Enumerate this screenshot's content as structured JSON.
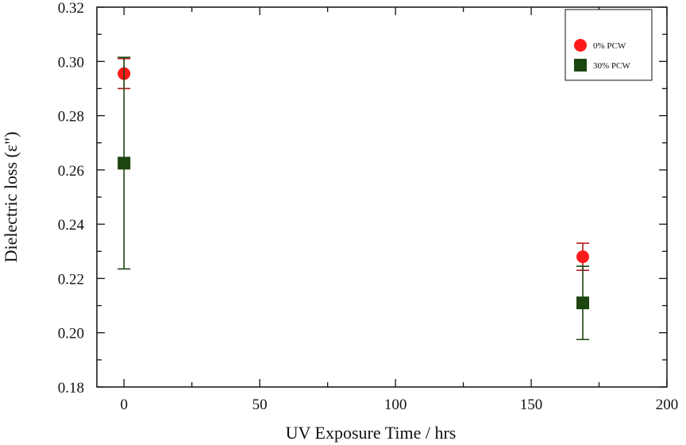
{
  "chart_data": {
    "type": "scatter",
    "title": "",
    "xlabel": "UV Exposure Time / hrs",
    "ylabel": "Dielectric loss (ε\")",
    "xlim": [
      -10,
      200
    ],
    "ylim": [
      0.18,
      0.32
    ],
    "xticks": [
      0,
      50,
      100,
      150,
      200
    ],
    "xtick_labels": [
      "0",
      "50",
      "100",
      "150",
      "200"
    ],
    "yticks": [
      0.18,
      0.2,
      0.22,
      0.24,
      0.26,
      0.28,
      0.3,
      0.32
    ],
    "ytick_labels": [
      "0.18",
      "0.20",
      "0.22",
      "0.24",
      "0.26",
      "0.28",
      "0.30",
      "0.32"
    ],
    "grid": false,
    "legend_position": "top-right",
    "series": [
      {
        "name": "0% PCW",
        "marker": "circle",
        "color": "#ff1a1a",
        "error_color": "#b01c1c",
        "points": [
          {
            "x": 0,
            "y": 0.2955,
            "err": 0.0055
          },
          {
            "x": 169,
            "y": 0.228,
            "err": 0.005
          }
        ]
      },
      {
        "name": "30% PCW",
        "marker": "square",
        "color": "#1c4510",
        "error_color": "#1c4510",
        "points": [
          {
            "x": 0,
            "y": 0.2625,
            "err": 0.039
          },
          {
            "x": 169,
            "y": 0.211,
            "err": 0.0135
          }
        ]
      }
    ]
  }
}
